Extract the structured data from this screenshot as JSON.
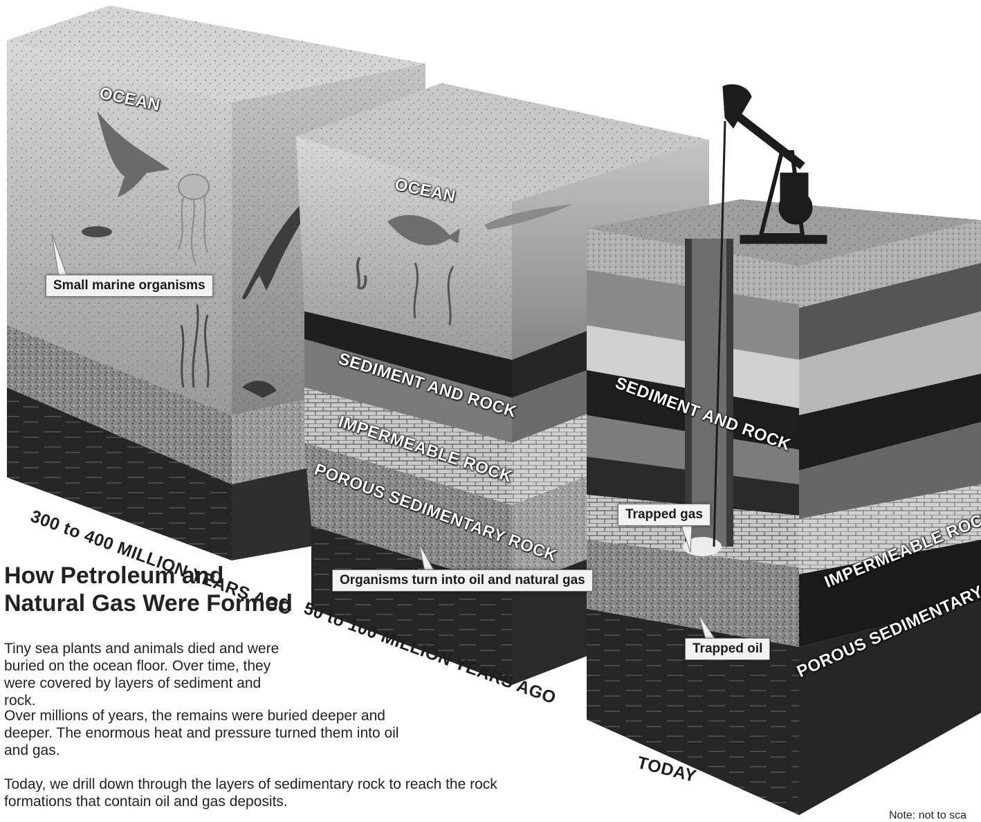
{
  "title": "How Petroleum and Natural Gas Were Formed",
  "paragraphs": [
    "Tiny sea plants and animals died and were buried on the ocean floor. Over time, they were covered by layers of sediment and rock.",
    "Over millions of years, the remains were buried deeper and deeper. The enormous heat and pressure turned them into oil and gas.",
    "Today, we drill down through the layers of sedimentary rock to reach the rock formations that contain oil and gas deposits."
  ],
  "block1": {
    "ocean_label": "OCEAN",
    "callout": "Small marine organisms",
    "era": "300 to 400 MILLION YEARS AGO"
  },
  "block2": {
    "ocean_label": "OCEAN",
    "layer1": "SEDIMENT AND ROCK",
    "layer2": "IMPERMEABLE ROCK",
    "layer3": "POROUS SEDIMENTARY ROCK",
    "callout": "Organisms turn into oil and natural gas",
    "era": "50 to 100 MILLION YEARS AGO"
  },
  "block3": {
    "layer1": "SEDIMENT AND ROCK",
    "layer2": "IMPERMEABLE ROCK",
    "layer3": "POROUS SEDIMENTARY ROCK",
    "gas_callout": "Trapped gas",
    "oil_callout": "Trapped oil",
    "era": "TODAY"
  },
  "note": "Note: not to sca"
}
